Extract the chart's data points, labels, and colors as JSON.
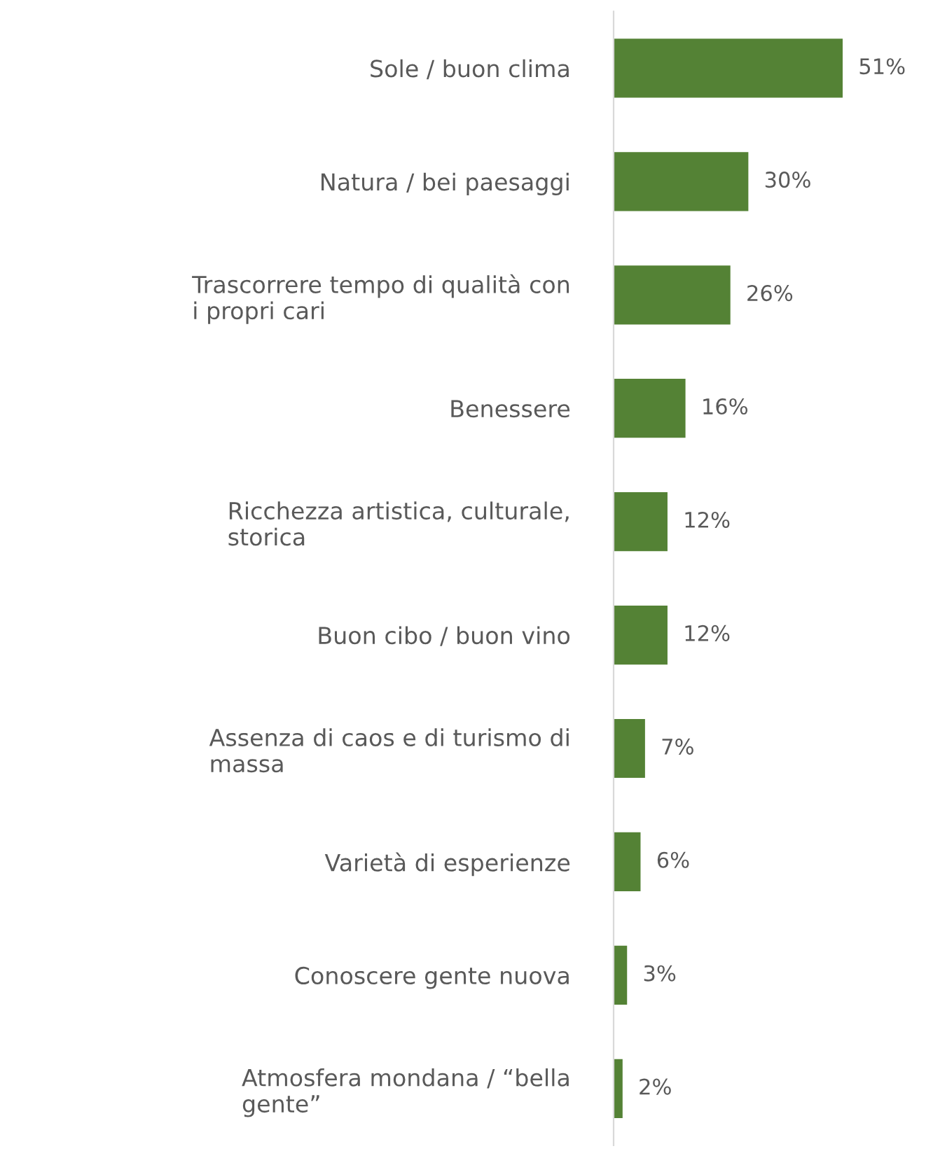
{
  "chart_data": {
    "type": "bar",
    "orientation": "horizontal",
    "categories": [
      "Sole / buon clima",
      "Natura / bei paesaggi",
      "Trascorrere tempo di qualità con\ni propri cari",
      "Benessere",
      "Ricchezza artistica, culturale,\nstorica",
      "Buon cibo / buon vino",
      "Assenza di caos e di turismo di\nmassa",
      "Varietà di esperienze",
      "Conoscere gente nuova",
      "Atmosfera mondana / “bella\ngente”"
    ],
    "values": [
      51,
      30,
      26,
      16,
      12,
      12,
      7,
      6,
      3,
      2
    ],
    "value_labels": [
      "51%",
      "30%",
      "26%",
      "16%",
      "12%",
      "12%",
      "7%",
      "6%",
      "3%",
      "2%"
    ],
    "color": "#548235",
    "grid": false,
    "legend": false
  }
}
